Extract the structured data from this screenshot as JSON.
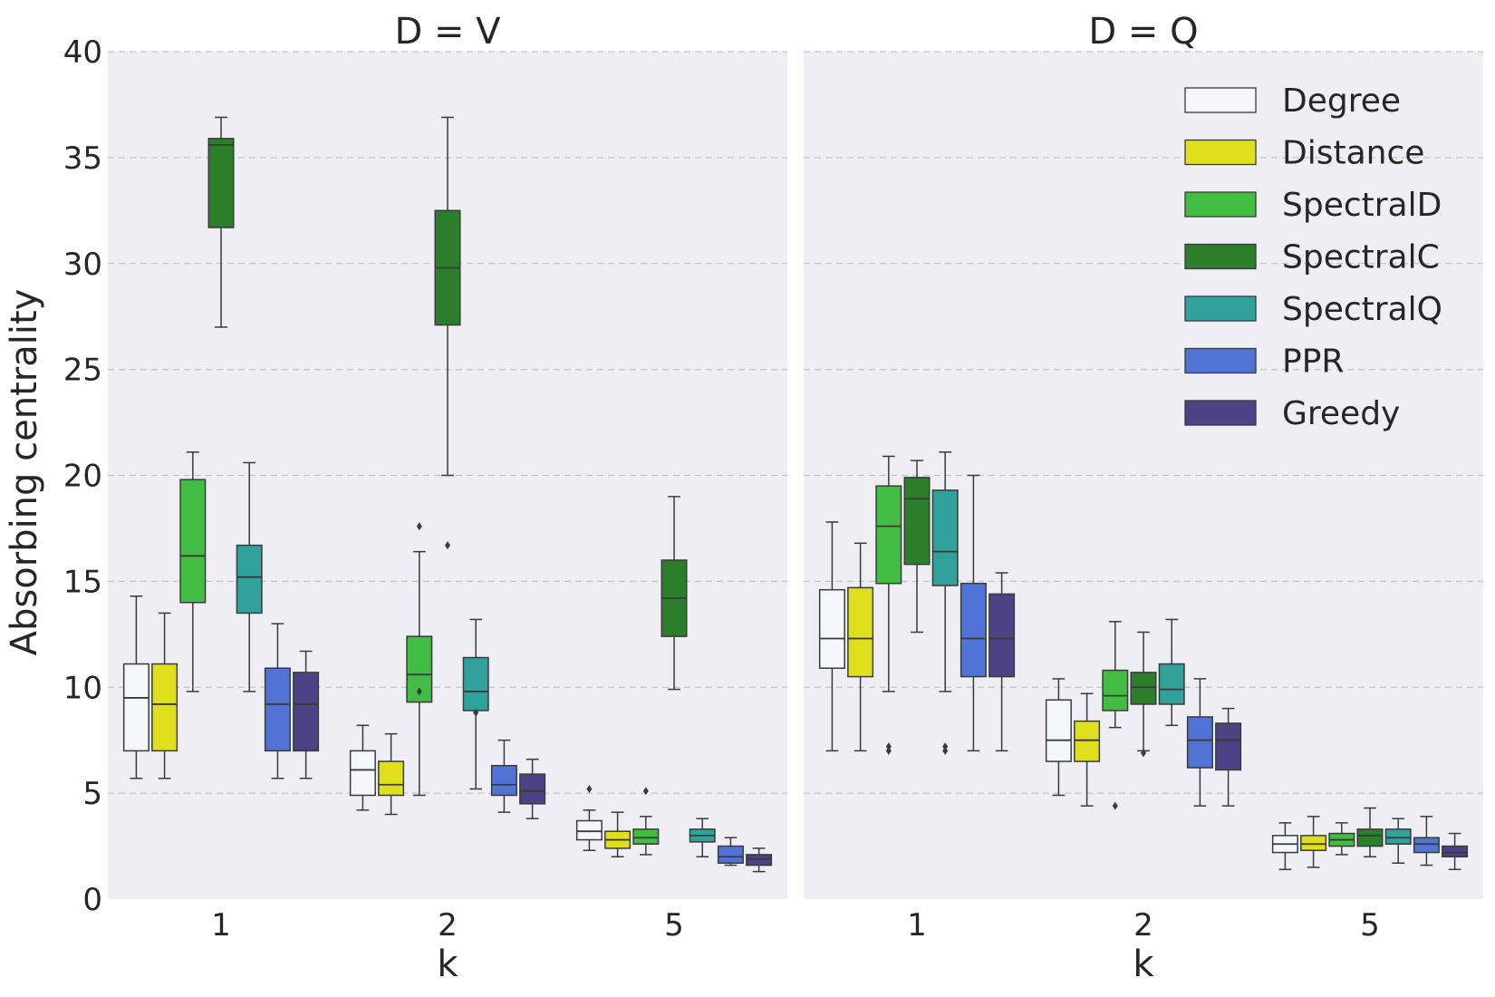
{
  "chart_data": {
    "type": "boxplot",
    "ylabel": "Absorbing centrality",
    "xlabel": "k",
    "ylim": [
      0,
      40
    ],
    "yticks": [
      0,
      5,
      10,
      15,
      20,
      25,
      30,
      35,
      40
    ],
    "categories": [
      "1",
      "2",
      "5"
    ],
    "grid": true,
    "legend_position": "top-right of right panel",
    "series": [
      {
        "name": "Degree",
        "color": "#f4f8fd"
      },
      {
        "name": "Distance",
        "color": "#dfdf1c"
      },
      {
        "name": "SpectralD",
        "color": "#42bc42"
      },
      {
        "name": "SpectralC",
        "color": "#2b7f2b"
      },
      {
        "name": "SpectralQ",
        "color": "#30a19b"
      },
      {
        "name": "PPR",
        "color": "#5173d6"
      },
      {
        "name": "Greedy",
        "color": "#4b4385"
      }
    ],
    "panels": [
      {
        "title": "D = V",
        "groups": [
          {
            "k": "1",
            "boxes": [
              {
                "series": "Degree",
                "min": 5.7,
                "q1": 7.0,
                "median": 9.5,
                "q3": 11.1,
                "max": 14.3,
                "outliers": []
              },
              {
                "series": "Distance",
                "min": 5.7,
                "q1": 7.0,
                "median": 9.2,
                "q3": 11.1,
                "max": 13.5,
                "outliers": []
              },
              {
                "series": "SpectralD",
                "min": 9.8,
                "q1": 14.0,
                "median": 16.2,
                "q3": 19.8,
                "max": 21.1,
                "outliers": []
              },
              {
                "series": "SpectralC",
                "min": 27.0,
                "q1": 31.7,
                "median": 35.6,
                "q3": 35.9,
                "max": 36.9,
                "outliers": []
              },
              {
                "series": "SpectralQ",
                "min": 9.8,
                "q1": 13.5,
                "median": 15.2,
                "q3": 16.7,
                "max": 20.6,
                "outliers": []
              },
              {
                "series": "PPR",
                "min": 5.7,
                "q1": 7.0,
                "median": 9.2,
                "q3": 10.9,
                "max": 13.0,
                "outliers": []
              },
              {
                "series": "Greedy",
                "min": 5.7,
                "q1": 7.0,
                "median": 9.2,
                "q3": 10.7,
                "max": 11.7,
                "outliers": []
              }
            ]
          },
          {
            "k": "2",
            "boxes": [
              {
                "series": "Degree",
                "min": 4.2,
                "q1": 4.9,
                "median": 6.1,
                "q3": 7.0,
                "max": 8.2,
                "outliers": []
              },
              {
                "series": "Distance",
                "min": 4.0,
                "q1": 4.9,
                "median": 5.4,
                "q3": 6.5,
                "max": 7.8,
                "outliers": []
              },
              {
                "series": "SpectralD",
                "min": 4.9,
                "q1": 9.3,
                "median": 10.6,
                "q3": 12.4,
                "max": 16.4,
                "outliers": [
                  17.6,
                  9.8
                ]
              },
              {
                "series": "SpectralC",
                "min": 20.0,
                "q1": 27.1,
                "median": 29.8,
                "q3": 32.5,
                "max": 36.9,
                "outliers": [
                  16.7
                ]
              },
              {
                "series": "SpectralQ",
                "min": 5.2,
                "q1": 8.9,
                "median": 9.8,
                "q3": 11.4,
                "max": 13.2,
                "outliers": [
                  8.8
                ]
              },
              {
                "series": "PPR",
                "min": 4.1,
                "q1": 4.9,
                "median": 5.4,
                "q3": 6.3,
                "max": 7.5,
                "outliers": []
              },
              {
                "series": "Greedy",
                "min": 3.8,
                "q1": 4.5,
                "median": 5.1,
                "q3": 5.9,
                "max": 6.6,
                "outliers": []
              }
            ]
          },
          {
            "k": "5",
            "boxes": [
              {
                "series": "Degree",
                "min": 2.3,
                "q1": 2.8,
                "median": 3.2,
                "q3": 3.7,
                "max": 4.2,
                "outliers": [
                  5.2
                ]
              },
              {
                "series": "Distance",
                "min": 2.0,
                "q1": 2.4,
                "median": 2.8,
                "q3": 3.2,
                "max": 4.1,
                "outliers": []
              },
              {
                "series": "SpectralD",
                "min": 2.1,
                "q1": 2.6,
                "median": 2.9,
                "q3": 3.3,
                "max": 3.9,
                "outliers": [
                  5.1
                ]
              },
              {
                "series": "SpectralC",
                "min": 9.9,
                "q1": 12.4,
                "median": 14.2,
                "q3": 16.0,
                "max": 19.0,
                "outliers": []
              },
              {
                "series": "SpectralQ",
                "min": 2.0,
                "q1": 2.7,
                "median": 3.0,
                "q3": 3.3,
                "max": 3.8,
                "outliers": []
              },
              {
                "series": "PPR",
                "min": 1.6,
                "q1": 1.7,
                "median": 2.0,
                "q3": 2.5,
                "max": 2.9,
                "outliers": []
              },
              {
                "series": "Greedy",
                "min": 1.3,
                "q1": 1.6,
                "median": 1.9,
                "q3": 2.1,
                "max": 2.4,
                "outliers": []
              }
            ]
          }
        ]
      },
      {
        "title": "D = Q",
        "groups": [
          {
            "k": "1",
            "boxes": [
              {
                "series": "Degree",
                "min": 7.0,
                "q1": 10.9,
                "median": 12.3,
                "q3": 14.6,
                "max": 17.8,
                "outliers": []
              },
              {
                "series": "Distance",
                "min": 7.0,
                "q1": 10.5,
                "median": 12.3,
                "q3": 14.7,
                "max": 16.8,
                "outliers": []
              },
              {
                "series": "SpectralD",
                "min": 9.8,
                "q1": 14.9,
                "median": 17.6,
                "q3": 19.5,
                "max": 20.9,
                "outliers": [
                  7.2,
                  7.0
                ]
              },
              {
                "series": "SpectralC",
                "min": 12.6,
                "q1": 15.8,
                "median": 18.9,
                "q3": 19.9,
                "max": 20.7,
                "outliers": []
              },
              {
                "series": "SpectralQ",
                "min": 9.8,
                "q1": 14.8,
                "median": 16.4,
                "q3": 19.3,
                "max": 21.1,
                "outliers": [
                  7.2,
                  7.0
                ]
              },
              {
                "series": "PPR",
                "min": 7.0,
                "q1": 10.5,
                "median": 12.3,
                "q3": 14.9,
                "max": 20.0,
                "outliers": []
              },
              {
                "series": "Greedy",
                "min": 7.0,
                "q1": 10.5,
                "median": 12.3,
                "q3": 14.4,
                "max": 15.4,
                "outliers": []
              }
            ]
          },
          {
            "k": "2",
            "boxes": [
              {
                "series": "Degree",
                "min": 4.9,
                "q1": 6.5,
                "median": 7.5,
                "q3": 9.4,
                "max": 10.4,
                "outliers": []
              },
              {
                "series": "Distance",
                "min": 4.4,
                "q1": 6.5,
                "median": 7.5,
                "q3": 8.4,
                "max": 9.7,
                "outliers": []
              },
              {
                "series": "SpectralD",
                "min": 8.1,
                "q1": 8.9,
                "median": 9.6,
                "q3": 10.8,
                "max": 13.1,
                "outliers": [
                  4.4
                ]
              },
              {
                "series": "SpectralC",
                "min": 7.0,
                "q1": 9.2,
                "median": 10.0,
                "q3": 10.7,
                "max": 12.6,
                "outliers": [
                  6.9
                ]
              },
              {
                "series": "SpectralQ",
                "min": 8.2,
                "q1": 9.2,
                "median": 9.9,
                "q3": 11.1,
                "max": 13.2,
                "outliers": []
              },
              {
                "series": "PPR",
                "min": 4.4,
                "q1": 6.2,
                "median": 7.5,
                "q3": 8.6,
                "max": 10.4,
                "outliers": []
              },
              {
                "series": "Greedy",
                "min": 4.4,
                "q1": 6.1,
                "median": 7.5,
                "q3": 8.3,
                "max": 9.0,
                "outliers": []
              }
            ]
          },
          {
            "k": "5",
            "boxes": [
              {
                "series": "Degree",
                "min": 1.4,
                "q1": 2.2,
                "median": 2.6,
                "q3": 3.0,
                "max": 3.6,
                "outliers": []
              },
              {
                "series": "Distance",
                "min": 1.5,
                "q1": 2.3,
                "median": 2.6,
                "q3": 3.0,
                "max": 3.9,
                "outliers": []
              },
              {
                "series": "SpectralD",
                "min": 2.1,
                "q1": 2.5,
                "median": 2.8,
                "q3": 3.1,
                "max": 3.6,
                "outliers": []
              },
              {
                "series": "SpectralC",
                "min": 2.0,
                "q1": 2.5,
                "median": 3.0,
                "q3": 3.3,
                "max": 4.3,
                "outliers": []
              },
              {
                "series": "SpectralQ",
                "min": 1.7,
                "q1": 2.6,
                "median": 2.9,
                "q3": 3.3,
                "max": 3.8,
                "outliers": []
              },
              {
                "series": "PPR",
                "min": 1.6,
                "q1": 2.2,
                "median": 2.6,
                "q3": 2.9,
                "max": 3.9,
                "outliers": []
              },
              {
                "series": "Greedy",
                "min": 1.4,
                "q1": 2.0,
                "median": 2.2,
                "q3": 2.5,
                "max": 3.1,
                "outliers": []
              }
            ]
          }
        ]
      }
    ]
  }
}
